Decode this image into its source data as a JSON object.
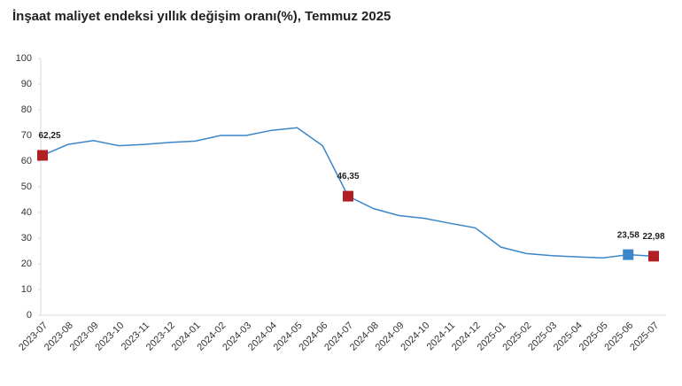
{
  "chart_data": {
    "type": "line",
    "title": "İnşaat maliyet endeksi yıllık değişim oranı(%), Temmuz 2025",
    "categories": [
      "2023-07",
      "2023-08",
      "2023-09",
      "2023-10",
      "2023-11",
      "2023-12",
      "2024-01",
      "2024-02",
      "2024-03",
      "2024-04",
      "2024-05",
      "2024-06",
      "2024-07",
      "2024-08",
      "2024-09",
      "2024-10",
      "2024-11",
      "2024-12",
      "2025-01",
      "2025-02",
      "2025-03",
      "2025-04",
      "2025-05",
      "2025-06",
      "2025-07"
    ],
    "series": [
      {
        "color": "#3a86c8",
        "values": [
          62.25,
          66.5,
          68,
          66,
          66.5,
          67.3,
          67.8,
          70,
          70,
          72,
          73,
          66,
          46.35,
          41.5,
          38.8,
          37.7,
          35.8,
          34,
          26.5,
          24,
          23.2,
          22.7,
          22.3,
          23.58,
          22.98
        ],
        "value_labels": [
          "62,25",
          null,
          null,
          null,
          null,
          null,
          null,
          null,
          null,
          null,
          null,
          null,
          "46,35",
          null,
          null,
          null,
          null,
          null,
          null,
          null,
          null,
          null,
          null,
          "23,58",
          "22,98"
        ],
        "marker_colors": [
          "#b01f24",
          null,
          null,
          null,
          null,
          null,
          null,
          null,
          null,
          null,
          null,
          null,
          "#b01f24",
          null,
          null,
          null,
          null,
          null,
          null,
          null,
          null,
          null,
          null,
          "#3a86c8",
          "#b01f24"
        ]
      }
    ],
    "ylim": [
      0,
      100
    ],
    "yticks": [
      0,
      10,
      20,
      30,
      40,
      50,
      60,
      70,
      80,
      90,
      100
    ],
    "grid": false
  }
}
